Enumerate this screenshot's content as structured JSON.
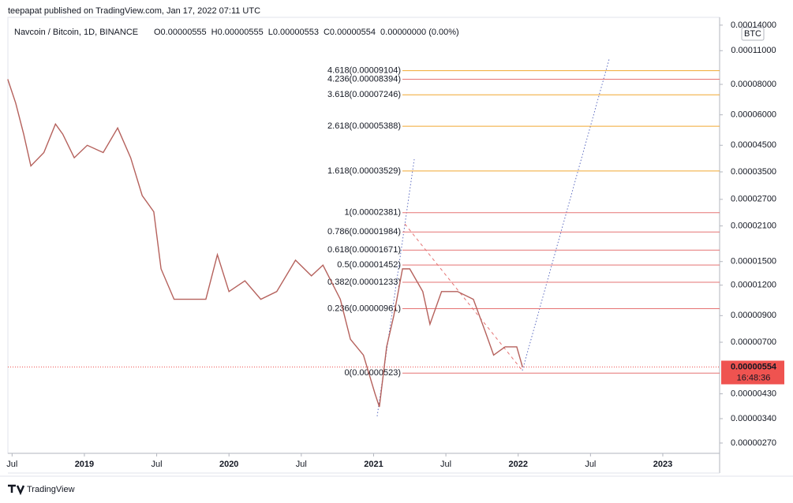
{
  "header": "teepapat published on TradingView.com, Jan 17, 2022 07:11 UTC",
  "footer": "TradingView",
  "chart_data": {
    "type": "line",
    "title": "Navcoin / Bitcoin, 1D, BINANCE",
    "ohlc": [
      "O0.00000555",
      "H0.00000555",
      "L0.00000553",
      "C0.00000554",
      "0.00000000 (0.00%)"
    ],
    "currency": "BTC",
    "log_scale": true,
    "xlim": [
      2018.471,
      2023.393
    ],
    "ylim": [
      2.45e-06,
      0.0001507
    ],
    "xticks": [
      {
        "value": 2018.5,
        "label": "Jul"
      },
      {
        "value": 2019,
        "label": "2019"
      },
      {
        "value": 2019.5,
        "label": "Jul"
      },
      {
        "value": 2020,
        "label": "2020"
      },
      {
        "value": 2020.5,
        "label": "Jul"
      },
      {
        "value": 2021,
        "label": "2021"
      },
      {
        "value": 2021.5,
        "label": "Jul"
      },
      {
        "value": 2022,
        "label": "2022"
      },
      {
        "value": 2022.5,
        "label": "Jul"
      },
      {
        "value": 2023,
        "label": "2023"
      }
    ],
    "yticks": [
      {
        "value": 0.00014,
        "label": "0.00014000"
      },
      {
        "value": 0.00011,
        "label": "0.00011000"
      },
      {
        "value": 8e-05,
        "label": "0.00008000"
      },
      {
        "value": 6e-05,
        "label": "0.00006000"
      },
      {
        "value": 4.5e-05,
        "label": "0.00004500"
      },
      {
        "value": 3.5e-05,
        "label": "0.00003500"
      },
      {
        "value": 2.7e-05,
        "label": "0.00002700"
      },
      {
        "value": 2.1e-05,
        "label": "0.00002100"
      },
      {
        "value": 1.5e-05,
        "label": "0.00001500"
      },
      {
        "value": 1.2e-05,
        "label": "0.00001200"
      },
      {
        "value": 9e-06,
        "label": "0.00000900"
      },
      {
        "value": 7e-06,
        "label": "0.00000700"
      },
      {
        "value": 4.3e-06,
        "label": "0.00000430"
      },
      {
        "value": 3.4e-06,
        "label": "0.00000340"
      },
      {
        "value": 2.7e-06,
        "label": "0.00000270"
      }
    ],
    "series": [
      {
        "color": "#b5615c",
        "x": [
          2018.47,
          2018.525,
          2018.58,
          2018.63,
          2018.72,
          2018.8,
          2018.85,
          2018.93,
          2019.02,
          2019.13,
          2019.23,
          2019.32,
          2019.4,
          2019.48,
          2019.53,
          2019.62,
          2019.73,
          2019.84,
          2019.92,
          2020.0,
          2020.11,
          2020.22,
          2020.33,
          2020.46,
          2020.57,
          2020.65,
          2020.77,
          2020.84,
          2020.93,
          2021.01,
          2021.04,
          2021.09,
          2021.14,
          2021.2,
          2021.25,
          2021.34,
          2021.39,
          2021.47,
          2021.58,
          2021.69,
          2021.77,
          2021.83,
          2021.91,
          2021.99,
          2022.03
        ],
        "values": [
          8.4e-05,
          6.7e-05,
          5e-05,
          3.7e-05,
          4.2e-05,
          5.5e-05,
          5e-05,
          4e-05,
          4.5e-05,
          4.2e-05,
          5.3e-05,
          4e-05,
          2.8e-05,
          2.4e-05,
          1.4e-05,
          1.05e-05,
          1.05e-05,
          1.05e-05,
          1.6e-05,
          1.13e-05,
          1.25e-05,
          1.05e-05,
          1.13e-05,
          1.52e-05,
          1.31e-05,
          1.45e-05,
          1.05e-05,
          7.2e-06,
          6.2e-06,
          4.3e-06,
          3.8e-06,
          6.7e-06,
          9e-06,
          1.4e-05,
          1.4e-05,
          1.13e-05,
          8.3e-06,
          1.13e-05,
          1.13e-05,
          1.05e-05,
          7.8e-06,
          6.2e-06,
          6.7e-06,
          6.7e-06,
          5.54e-06
        ]
      }
    ],
    "last_price": 5.54e-06,
    "last_price_timer": "16:48:36",
    "fib_levels": [
      {
        "label": "4.618(0.00009104)",
        "price": 9.104e-05,
        "color": "#f0a830"
      },
      {
        "label": "4.236(0.00008394)",
        "price": 8.394e-05,
        "color": "#e57373"
      },
      {
        "label": "3.618(0.00007246)",
        "price": 7.246e-05,
        "color": "#f0a830"
      },
      {
        "label": "2.618(0.00005388)",
        "price": 5.388e-05,
        "color": "#f0a830"
      },
      {
        "label": "1.618(0.00003529)",
        "price": 3.529e-05,
        "color": "#f0a830"
      },
      {
        "label": "1(0.00002381)",
        "price": 2.381e-05,
        "color": "#e57373"
      },
      {
        "label": "0.786(0.00001984)",
        "price": 1.984e-05,
        "color": "#e57373"
      },
      {
        "label": "0.618(0.00001671)",
        "price": 1.671e-05,
        "color": "#e57373"
      },
      {
        "label": "0.5(0.00001452)",
        "price": 1.452e-05,
        "color": "#e57373"
      },
      {
        "label": "0.382(0.00001233)",
        "price": 1.233e-05,
        "color": "#e57373"
      },
      {
        "label": "0.236(0.00000961)",
        "price": 9.61e-06,
        "color": "#e57373"
      },
      {
        "label": "0(0.00000523)",
        "price": 5.23e-06,
        "color": "#e57373"
      }
    ]
  }
}
